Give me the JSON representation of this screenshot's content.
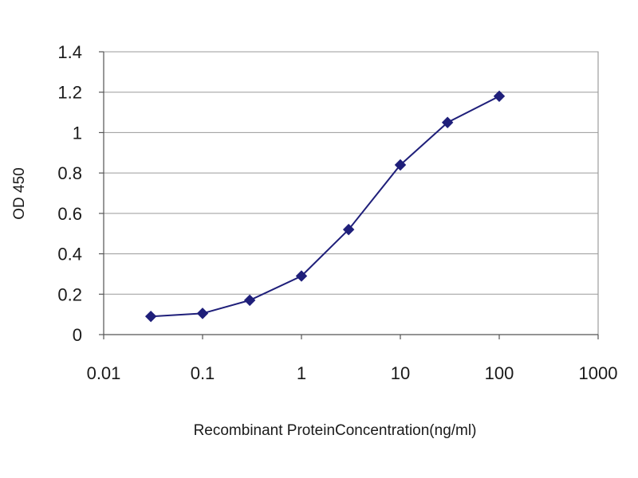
{
  "chart_data": {
    "type": "line",
    "title": "",
    "xlabel": "Recombinant ProteinConcentration(ng/ml)",
    "ylabel": "OD 450",
    "x_scale": "log",
    "xlim": [
      0.01,
      1000
    ],
    "ylim": [
      0,
      1.4
    ],
    "x_ticks": [
      "0.01",
      "0.1",
      "1",
      "10",
      "100",
      "1000"
    ],
    "x_tick_values": [
      0.01,
      0.1,
      1,
      10,
      100,
      1000
    ],
    "y_ticks": [
      "0",
      "0.2",
      "0.4",
      "0.6",
      "0.8",
      "1",
      "1.2",
      "1.4"
    ],
    "y_tick_values": [
      0,
      0.2,
      0.4,
      0.6,
      0.8,
      1,
      1.2,
      1.4
    ],
    "grid": "horizontal",
    "series": [
      {
        "color": "#1f1f7a",
        "x": [
          0.03,
          0.1,
          0.3,
          1,
          3,
          10,
          30,
          100
        ],
        "y": [
          0.09,
          0.105,
          0.17,
          0.29,
          0.52,
          0.84,
          1.05,
          1.18
        ]
      }
    ]
  }
}
